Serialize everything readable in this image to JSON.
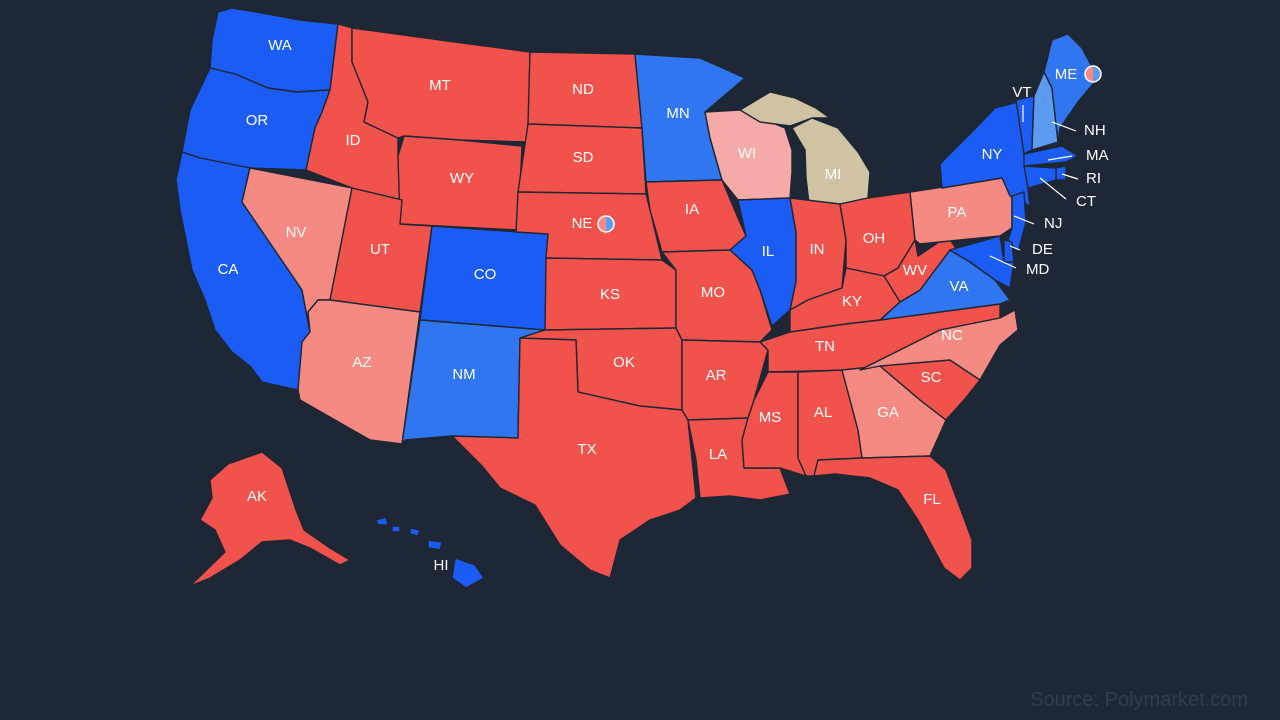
{
  "source": "Source: Polymarket.com",
  "colors": {
    "background": "#1e2735",
    "solid_dem": "#1a5cf4",
    "likely_dem": "#2f76f0",
    "lean_dem": "#5c9bf0",
    "solid_rep": "#f2524c",
    "lean_rep": "#f58a82",
    "tilt_rep": "#f6aaa8",
    "tossup": "#cfc3a3"
  },
  "states": [
    {
      "abbr": "WA",
      "rating": "solid_dem"
    },
    {
      "abbr": "OR",
      "rating": "solid_dem"
    },
    {
      "abbr": "CA",
      "rating": "solid_dem"
    },
    {
      "abbr": "NV",
      "rating": "lean_rep"
    },
    {
      "abbr": "ID",
      "rating": "solid_rep"
    },
    {
      "abbr": "MT",
      "rating": "solid_rep"
    },
    {
      "abbr": "WY",
      "rating": "solid_rep"
    },
    {
      "abbr": "UT",
      "rating": "solid_rep"
    },
    {
      "abbr": "AZ",
      "rating": "lean_rep"
    },
    {
      "abbr": "CO",
      "rating": "solid_dem"
    },
    {
      "abbr": "NM",
      "rating": "likely_dem"
    },
    {
      "abbr": "ND",
      "rating": "solid_rep"
    },
    {
      "abbr": "SD",
      "rating": "solid_rep"
    },
    {
      "abbr": "NE",
      "rating": "solid_rep",
      "split": true
    },
    {
      "abbr": "KS",
      "rating": "solid_rep"
    },
    {
      "abbr": "OK",
      "rating": "solid_rep"
    },
    {
      "abbr": "TX",
      "rating": "solid_rep"
    },
    {
      "abbr": "MN",
      "rating": "likely_dem"
    },
    {
      "abbr": "IA",
      "rating": "solid_rep"
    },
    {
      "abbr": "MO",
      "rating": "solid_rep"
    },
    {
      "abbr": "AR",
      "rating": "solid_rep"
    },
    {
      "abbr": "LA",
      "rating": "solid_rep"
    },
    {
      "abbr": "WI",
      "rating": "tilt_rep"
    },
    {
      "abbr": "MI",
      "rating": "tossup"
    },
    {
      "abbr": "IL",
      "rating": "solid_dem"
    },
    {
      "abbr": "IN",
      "rating": "solid_rep"
    },
    {
      "abbr": "OH",
      "rating": "solid_rep"
    },
    {
      "abbr": "KY",
      "rating": "solid_rep"
    },
    {
      "abbr": "TN",
      "rating": "solid_rep"
    },
    {
      "abbr": "MS",
      "rating": "solid_rep"
    },
    {
      "abbr": "AL",
      "rating": "solid_rep"
    },
    {
      "abbr": "GA",
      "rating": "lean_rep"
    },
    {
      "abbr": "FL",
      "rating": "solid_rep"
    },
    {
      "abbr": "SC",
      "rating": "solid_rep"
    },
    {
      "abbr": "NC",
      "rating": "lean_rep"
    },
    {
      "abbr": "VA",
      "rating": "likely_dem"
    },
    {
      "abbr": "WV",
      "rating": "solid_rep"
    },
    {
      "abbr": "PA",
      "rating": "lean_rep"
    },
    {
      "abbr": "NY",
      "rating": "solid_dem"
    },
    {
      "abbr": "VT",
      "rating": "solid_dem"
    },
    {
      "abbr": "NH",
      "rating": "lean_dem"
    },
    {
      "abbr": "ME",
      "rating": "likely_dem",
      "split": true
    },
    {
      "abbr": "MA",
      "rating": "solid_dem"
    },
    {
      "abbr": "RI",
      "rating": "solid_dem"
    },
    {
      "abbr": "CT",
      "rating": "solid_dem"
    },
    {
      "abbr": "NJ",
      "rating": "solid_dem"
    },
    {
      "abbr": "DE",
      "rating": "solid_dem"
    },
    {
      "abbr": "MD",
      "rating": "solid_dem"
    },
    {
      "abbr": "AK",
      "rating": "solid_rep"
    },
    {
      "abbr": "HI",
      "rating": "solid_dem"
    }
  ]
}
